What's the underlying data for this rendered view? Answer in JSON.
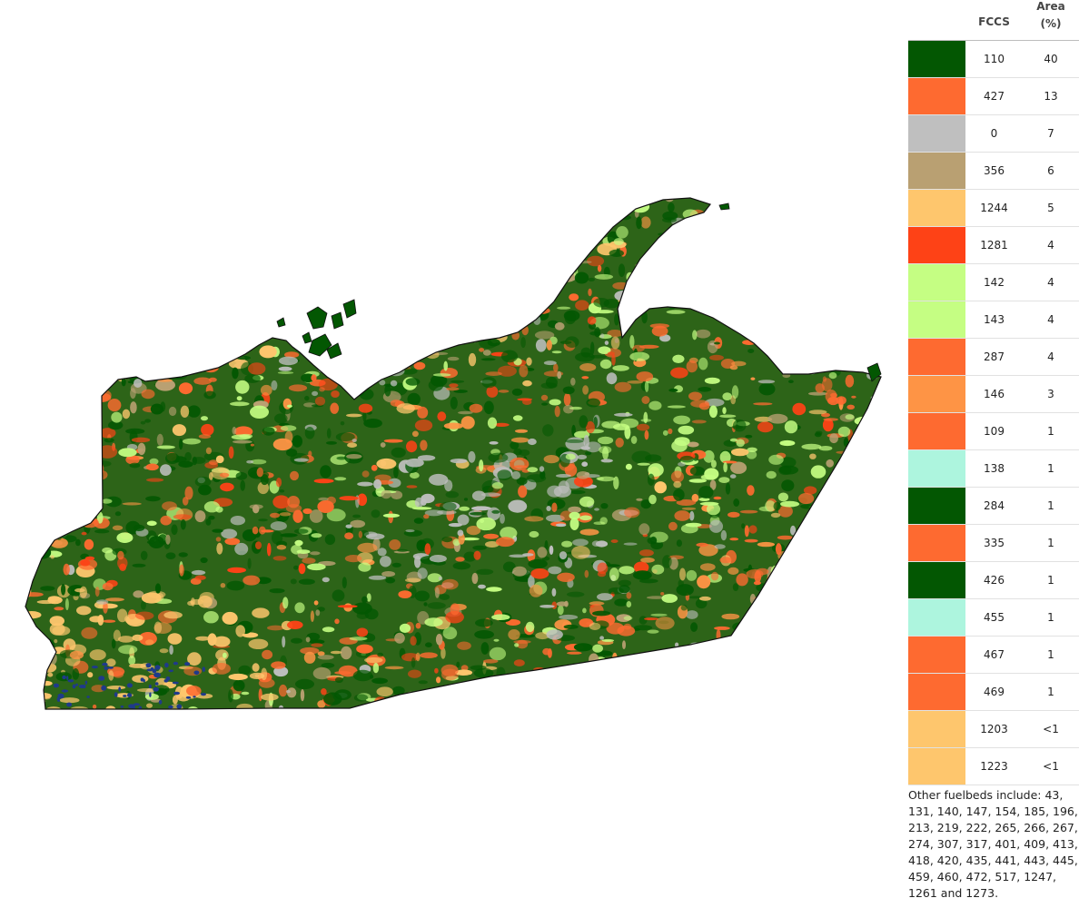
{
  "legend": {
    "header_fccs": "FCCS",
    "header_area_line1": "Area",
    "header_area_line2": "(%)",
    "rows": [
      {
        "fccs": "110",
        "area": "40",
        "color": "#035702"
      },
      {
        "fccs": "427",
        "area": "13",
        "color": "#fe6a30"
      },
      {
        "fccs": "0",
        "area": "7",
        "color": "#bfbfbf"
      },
      {
        "fccs": "356",
        "area": "6",
        "color": "#b9a072"
      },
      {
        "fccs": "1244",
        "area": "5",
        "color": "#fec66d"
      },
      {
        "fccs": "1281",
        "area": "4",
        "color": "#fe4216"
      },
      {
        "fccs": "142",
        "area": "4",
        "color": "#c5fe83"
      },
      {
        "fccs": "143",
        "area": "4",
        "color": "#c5fe83"
      },
      {
        "fccs": "287",
        "area": "4",
        "color": "#fe6a30"
      },
      {
        "fccs": "146",
        "area": "3",
        "color": "#fe9445"
      },
      {
        "fccs": "109",
        "area": "1",
        "color": "#fe6a30"
      },
      {
        "fccs": "138",
        "area": "1",
        "color": "#adf5de"
      },
      {
        "fccs": "284",
        "area": "1",
        "color": "#035702"
      },
      {
        "fccs": "335",
        "area": "1",
        "color": "#fe6a30"
      },
      {
        "fccs": "426",
        "area": "1",
        "color": "#035702"
      },
      {
        "fccs": "455",
        "area": "1",
        "color": "#adf5de"
      },
      {
        "fccs": "467",
        "area": "1",
        "color": "#fe6a30"
      },
      {
        "fccs": "469",
        "area": "1",
        "color": "#fe6a30"
      },
      {
        "fccs": "1203",
        "area": "<1",
        "color": "#fec66d"
      },
      {
        "fccs": "1223",
        "area": "<1",
        "color": "#fec66d"
      }
    ],
    "note": "Other fuelbeds include: 43, 131, 140, 147, 154, 185, 196, 213, 219, 222, 265, 266, 267, 274, 307, 317, 401, 409, 413, 418, 420, 435, 441, 443, 445, 459, 460, 472, 517, 1247, 1261 and 1273."
  }
}
